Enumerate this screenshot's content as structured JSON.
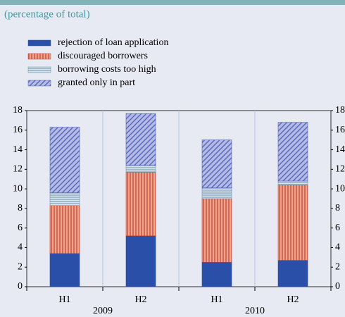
{
  "chart_data": {
    "type": "stacked_bar",
    "subtitle": "(percentage of total)",
    "categories": [
      "H1",
      "H2",
      "H1",
      "H2"
    ],
    "groups": [
      {
        "label": "2009",
        "span": 2
      },
      {
        "label": "2010",
        "span": 2
      }
    ],
    "series": [
      {
        "name": "rejection of loan application",
        "color": "#2a4fa8",
        "pattern": "solid",
        "values": [
          3.4,
          5.2,
          2.5,
          2.7
        ]
      },
      {
        "name": "discouraged borrowers",
        "color": "#c8402c",
        "pattern": "vertical",
        "values": [
          4.9,
          6.5,
          6.5,
          7.7
        ]
      },
      {
        "name": "borrowing costs too high",
        "color": "#6f90ad",
        "pattern": "horizontal",
        "values": [
          1.3,
          0.7,
          1.1,
          0.4
        ]
      },
      {
        "name": "granted only in part",
        "color": "#4f5fb3",
        "pattern": "diagonal",
        "values": [
          6.7,
          5.3,
          4.9,
          6.0
        ]
      }
    ],
    "ylim": [
      0,
      18
    ],
    "yticks": [
      0,
      2,
      4,
      6,
      8,
      10,
      12,
      14,
      16,
      18
    ],
    "y2ticks_mirror": true
  }
}
